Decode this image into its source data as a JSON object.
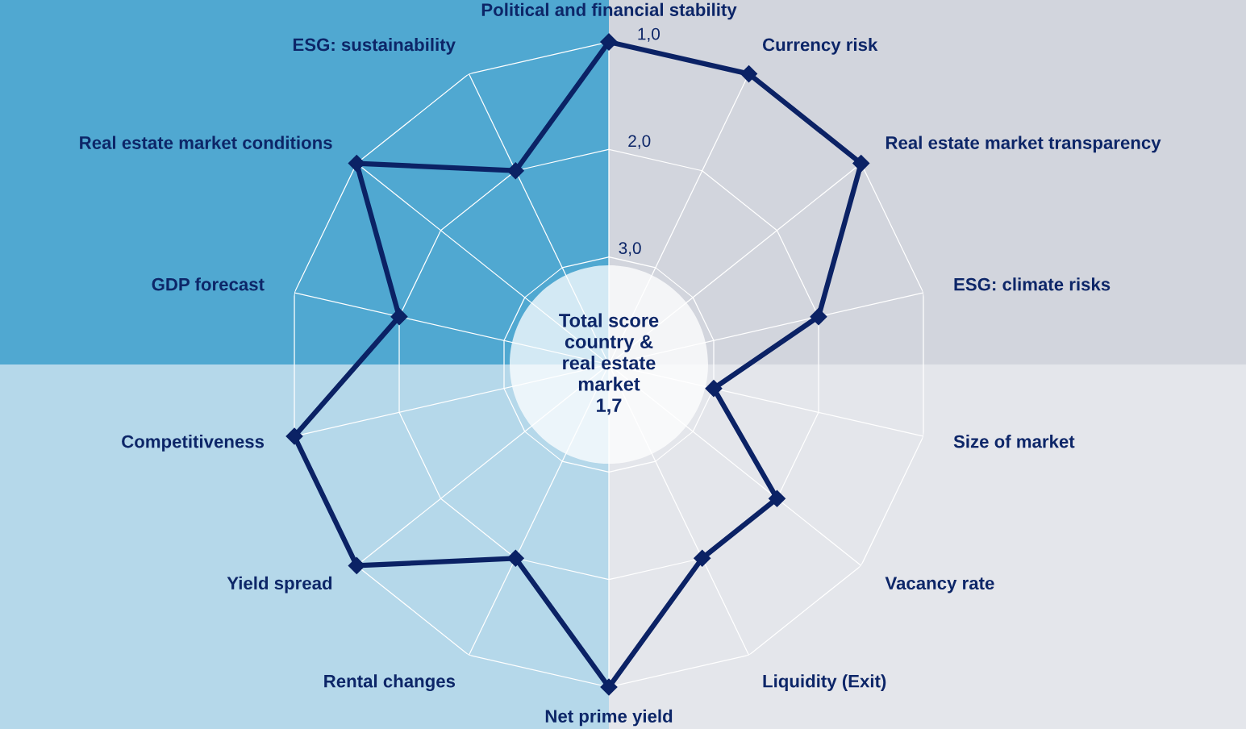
{
  "chart_data": {
    "type": "radar",
    "categories": [
      "Political and financial stability",
      "Currency risk",
      "Real estate market transparency",
      "ESG: climate risks",
      "Size of market",
      "Vacancy rate",
      "Liquidity (Exit)",
      "Net prime yield",
      "Rental changes",
      "Yield spread",
      "Competitiveness",
      "GDP forecast",
      "Real estate market conditions",
      "ESG: sustainability"
    ],
    "series": [
      {
        "color": "#0b2265",
        "values": [
          1,
          1,
          1,
          2,
          3,
          2,
          2,
          1,
          2,
          1,
          1,
          2,
          1,
          2
        ]
      }
    ],
    "ylim": [
      4,
      1
    ],
    "yticks": [
      {
        "value": 1,
        "label": "1,0"
      },
      {
        "value": 2,
        "label": "2,0"
      },
      {
        "value": 3,
        "label": "3,0"
      }
    ],
    "grid": true,
    "marker": "diamond",
    "line_style": "solid",
    "annotations": [
      "Total score\ncountry &\nreal estate\nmarket\n1,7"
    ]
  }
}
